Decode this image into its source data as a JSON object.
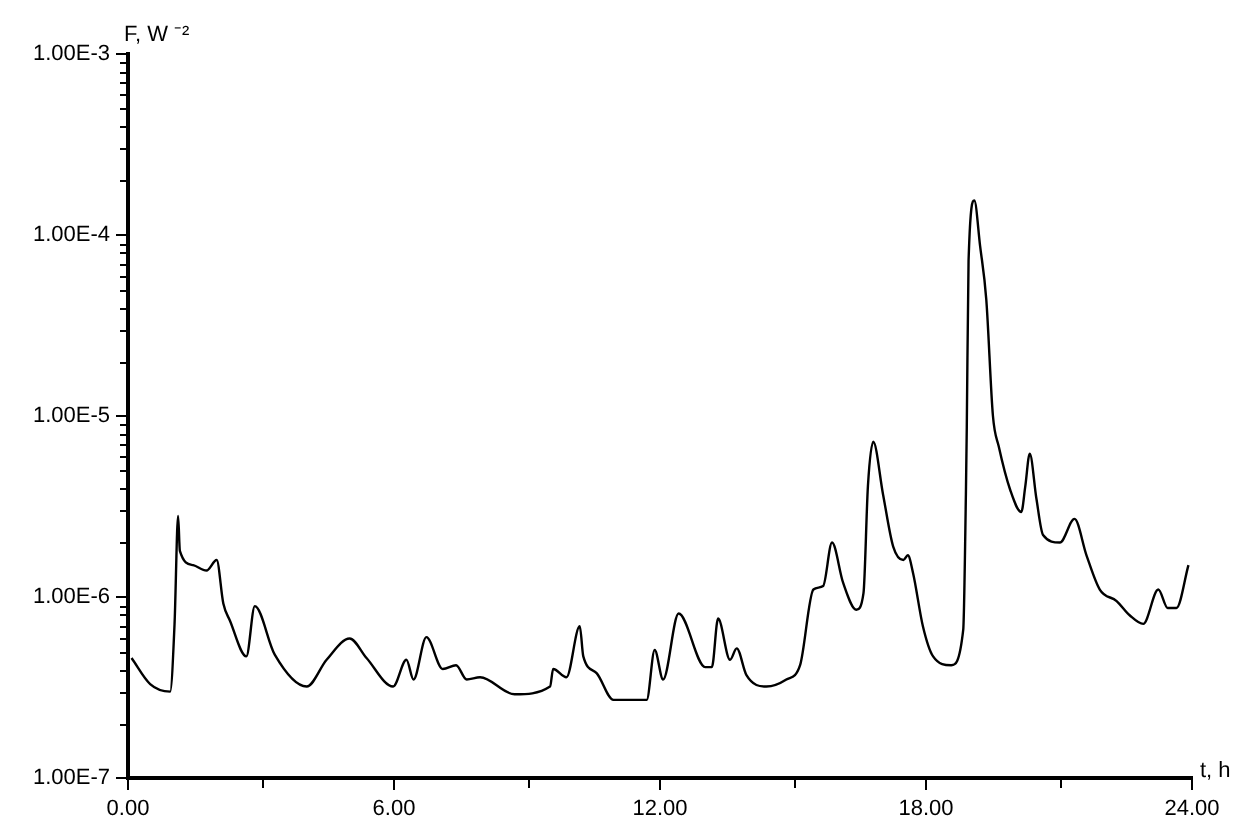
{
  "chart_data": {
    "type": "line",
    "xlabel": "t, h",
    "ylabel": "F, W ⁻²",
    "log": "y",
    "grid": false,
    "legend": false,
    "marker": "none",
    "line_style": "solid",
    "xlim": [
      0,
      24
    ],
    "ylim": [
      1e-07,
      0.001
    ],
    "xticks": [
      {
        "value": 0,
        "label": "0.00"
      },
      {
        "value": 3,
        "label": null
      },
      {
        "value": 6,
        "label": "6.00"
      },
      {
        "value": 9,
        "label": null
      },
      {
        "value": 12,
        "label": "12.00"
      },
      {
        "value": 15,
        "label": null
      },
      {
        "value": 18,
        "label": "18.00"
      },
      {
        "value": 21,
        "label": null
      },
      {
        "value": 24,
        "label": "24.00"
      }
    ],
    "yticks": [
      {
        "value": 1e-07,
        "label": "1.00E-7"
      },
      {
        "value": 2e-07,
        "label": null
      },
      {
        "value": 3e-07,
        "label": null
      },
      {
        "value": 4e-07,
        "label": null
      },
      {
        "value": 5e-07,
        "label": null
      },
      {
        "value": 6e-07,
        "label": null
      },
      {
        "value": 7e-07,
        "label": null
      },
      {
        "value": 8e-07,
        "label": null
      },
      {
        "value": 9e-07,
        "label": null
      },
      {
        "value": 1e-06,
        "label": "1.00E-6"
      },
      {
        "value": 2e-06,
        "label": null
      },
      {
        "value": 3e-06,
        "label": null
      },
      {
        "value": 4e-06,
        "label": null
      },
      {
        "value": 5e-06,
        "label": null
      },
      {
        "value": 6e-06,
        "label": null
      },
      {
        "value": 7e-06,
        "label": null
      },
      {
        "value": 8e-06,
        "label": null
      },
      {
        "value": 9e-06,
        "label": null
      },
      {
        "value": 1e-05,
        "label": "1.00E-5"
      },
      {
        "value": 2e-05,
        "label": null
      },
      {
        "value": 3e-05,
        "label": null
      },
      {
        "value": 4e-05,
        "label": null
      },
      {
        "value": 5e-05,
        "label": null
      },
      {
        "value": 6e-05,
        "label": null
      },
      {
        "value": 7e-05,
        "label": null
      },
      {
        "value": 8e-05,
        "label": null
      },
      {
        "value": 9e-05,
        "label": null
      },
      {
        "value": 0.0001,
        "label": "1.00E-4"
      },
      {
        "value": 0.0002,
        "label": null
      },
      {
        "value": 0.0003,
        "label": null
      },
      {
        "value": 0.0004,
        "label": null
      },
      {
        "value": 0.0005,
        "label": null
      },
      {
        "value": 0.0006,
        "label": null
      },
      {
        "value": 0.0007,
        "label": null
      },
      {
        "value": 0.0008,
        "label": null
      },
      {
        "value": 0.0009,
        "label": null
      },
      {
        "value": 0.001,
        "label": "1.00E-3"
      }
    ],
    "series": [
      {
        "color": "#000000",
        "x": [
          0.08,
          0.5,
          0.95,
          1.05,
          1.13,
          1.17,
          1.47,
          1.77,
          2.0,
          2.15,
          2.3,
          2.67,
          2.86,
          3.31,
          4.03,
          4.48,
          5.0,
          5.38,
          5.98,
          6.28,
          6.44,
          6.73,
          7.1,
          7.4,
          7.64,
          7.94,
          8.72,
          9.52,
          9.59,
          9.89,
          10.19,
          10.27,
          10.57,
          10.95,
          11.7,
          11.88,
          12.07,
          12.42,
          13.02,
          13.17,
          13.31,
          13.58,
          13.73,
          13.95,
          14.4,
          14.85,
          15.16,
          15.46,
          15.68,
          15.88,
          16.13,
          16.43,
          16.59,
          16.69,
          16.81,
          17.03,
          17.26,
          17.49,
          17.59,
          17.71,
          17.93,
          18.16,
          18.57,
          18.84,
          18.9,
          18.92,
          18.96,
          19.09,
          19.22,
          19.36,
          19.51,
          19.64,
          19.9,
          20.15,
          20.24,
          20.34,
          20.49,
          20.64,
          21.02,
          21.35,
          21.62,
          21.92,
          22.3,
          22.6,
          22.9,
          23.24,
          23.45,
          23.65,
          23.92
        ],
        "values": [
          4.6e-07,
          3.3e-07,
          3e-07,
          7.1e-07,
          2.8e-06,
          1.8e-06,
          1.5e-06,
          1.4e-06,
          1.6e-06,
          9.2e-07,
          7.4e-07,
          4.7e-07,
          8.9e-07,
          4.8e-07,
          3.2e-07,
          4.5e-07,
          5.9e-07,
          4.6e-07,
          3.2e-07,
          4.5e-07,
          3.5e-07,
          6e-07,
          4e-07,
          4.2e-07,
          3.5e-07,
          3.6e-07,
          2.9e-07,
          3.2e-07,
          4e-07,
          3.6e-07,
          6.9e-07,
          4.7e-07,
          3.8e-07,
          2.7e-07,
          2.7e-07,
          5.1e-07,
          3.5e-07,
          8.1e-07,
          4.1e-07,
          4.1e-07,
          7.6e-07,
          4.5e-07,
          5.2e-07,
          3.7e-07,
          3.2e-07,
          3.5e-07,
          4.2e-07,
          1.1e-06,
          1.15e-06,
          2e-06,
          1.2e-06,
          8.5e-07,
          1.05e-06,
          4.1e-06,
          7.2e-06,
          3.7e-06,
          1.9e-06,
          1.6e-06,
          1.7e-06,
          1.35e-06,
          6.9e-07,
          4.7e-07,
          4.2e-07,
          6.6e-07,
          3.7e-06,
          8.7e-06,
          7.2e-05,
          0.000155,
          8.7e-05,
          4.4e-05,
          1e-05,
          6.8e-06,
          3.9e-06,
          2.95e-06,
          4.1e-06,
          6.2e-06,
          3.5e-06,
          2.2e-06,
          2e-06,
          2.7e-06,
          1.7e-06,
          1.1e-06,
          9.5e-07,
          7.9e-07,
          7.1e-07,
          1.1e-06,
          8.7e-07,
          8.7e-07,
          1.5e-06
        ]
      }
    ]
  }
}
